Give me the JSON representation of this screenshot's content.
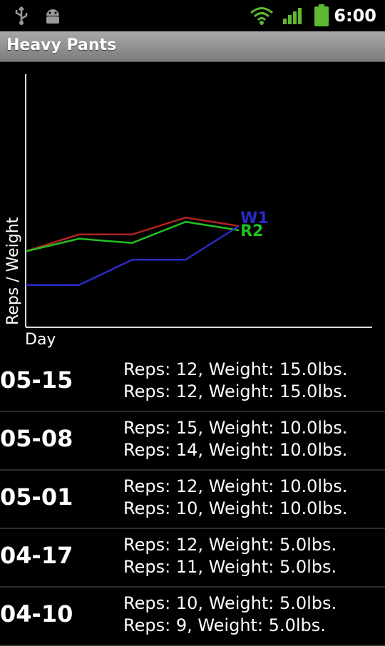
{
  "status_bar": {
    "time": "6:00",
    "icons": [
      "usb-icon",
      "android-debug-icon",
      "wifi-icon",
      "signal-icon",
      "battery-icon"
    ]
  },
  "app": {
    "title": "Heavy Pants"
  },
  "chart_data": {
    "type": "line",
    "xlabel": "Day",
    "ylabel": "Reps / Weight",
    "grid": false,
    "series": [
      {
        "name": "",
        "color": "#b22222",
        "values": [
          9,
          11,
          11,
          13,
          12
        ]
      },
      {
        "name": "R2",
        "color": "#22c022",
        "values": [
          9,
          10.5,
          10,
          12.5,
          11.5
        ]
      },
      {
        "name": "W1",
        "color": "#2a2ac8",
        "values": [
          5,
          5,
          8,
          8,
          12
        ]
      }
    ],
    "x": [
      0,
      1,
      2,
      3,
      4
    ],
    "ylim": [
      0,
      30
    ]
  },
  "log": [
    {
      "date": "05-15",
      "line1": "Reps: 12, Weight: 15.0lbs.",
      "line2": "Reps: 12, Weight: 15.0lbs."
    },
    {
      "date": "05-08",
      "line1": "Reps: 15, Weight: 10.0lbs.",
      "line2": "Reps: 14, Weight: 10.0lbs."
    },
    {
      "date": "05-01",
      "line1": "Reps: 12, Weight: 10.0lbs.",
      "line2": "Reps: 10, Weight: 10.0lbs."
    },
    {
      "date": "04-17",
      "line1": "Reps: 12, Weight: 5.0lbs.",
      "line2": "Reps: 11, Weight: 5.0lbs."
    },
    {
      "date": "04-10",
      "line1": "Reps: 10, Weight: 5.0lbs.",
      "line2": "Reps: 9, Weight: 5.0lbs."
    }
  ]
}
